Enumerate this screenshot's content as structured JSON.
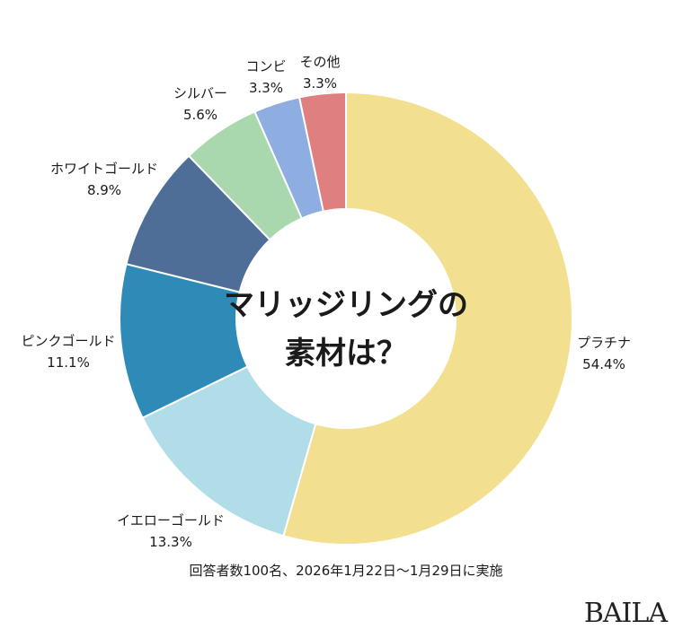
{
  "chart_data": {
    "type": "pie",
    "variant": "donut",
    "title": "マリッジリングの素材は？",
    "start": "top",
    "direction": "clockwise",
    "slices": [
      {
        "label": "プラチナ",
        "value": 54.4,
        "value_label": "54.4%",
        "color": "#f2df8f"
      },
      {
        "label": "イエローゴールド",
        "value": 13.3,
        "value_label": "13.3%",
        "color": "#b1dde9"
      },
      {
        "label": "ピンクゴールド",
        "value": 11.1,
        "value_label": "11.1%",
        "color": "#2e8bb8"
      },
      {
        "label": "ホワイトゴールド",
        "value": 8.9,
        "value_label": "8.9%",
        "color": "#4e6e98"
      },
      {
        "label": "シルバー",
        "value": 5.6,
        "value_label": "5.6%",
        "color": "#a9d8ae"
      },
      {
        "label": "コンビ",
        "value": 3.3,
        "value_label": "3.3%",
        "color": "#8eade0"
      },
      {
        "label": "その他",
        "value": 3.3,
        "value_label": "3.3%",
        "color": "#e07f7f"
      }
    ]
  },
  "center_title": {
    "line1": "マリッジリングの",
    "line2": "素材は？"
  },
  "footnote": "回答者数100名、2026年1月22日～1月29日に実施",
  "logo": "BAILA"
}
